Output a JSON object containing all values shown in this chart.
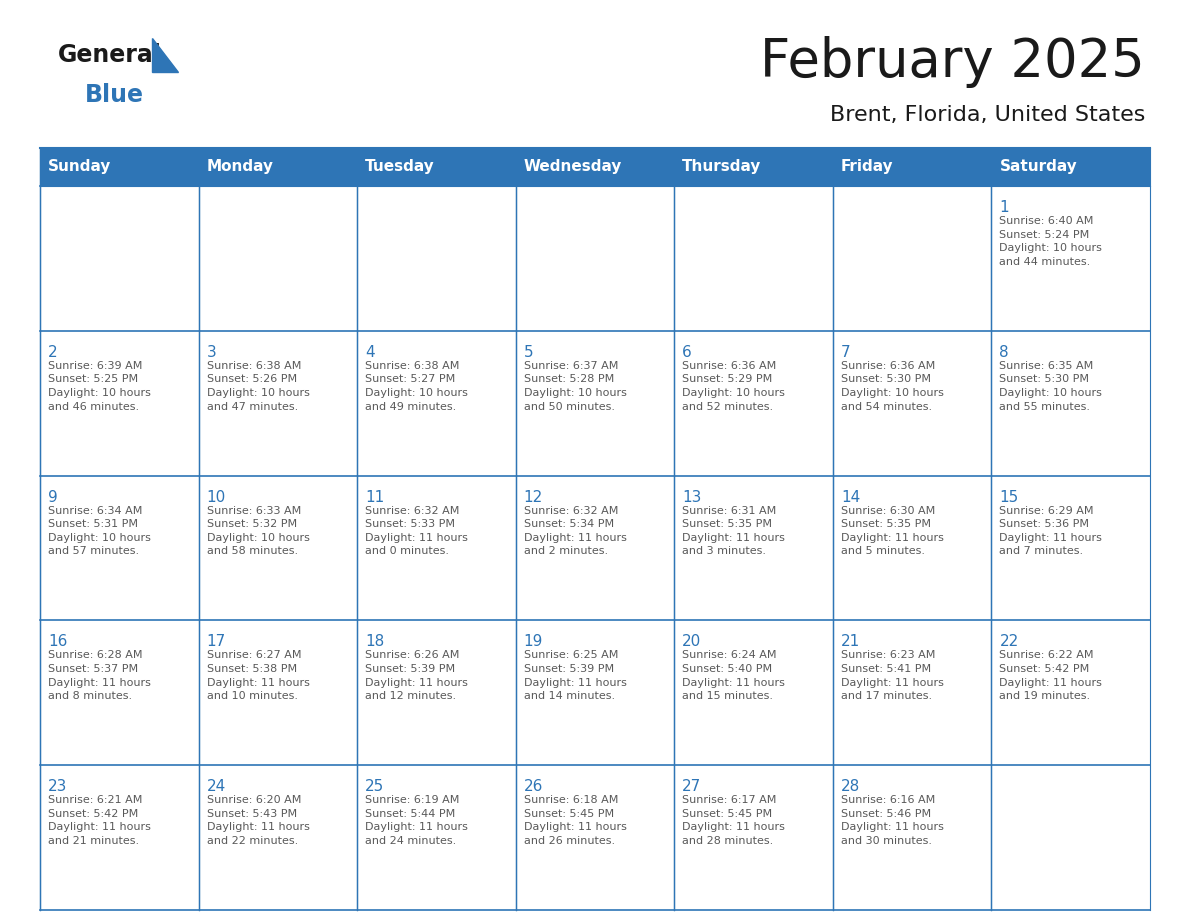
{
  "title": "February 2025",
  "subtitle": "Brent, Florida, United States",
  "header_bg": "#2E75B6",
  "header_text_color": "#FFFFFF",
  "cell_bg": "#FFFFFF",
  "border_color": "#2E75B6",
  "day_number_color": "#2E75B6",
  "detail_text_color": "#595959",
  "background_color": "#FFFFFF",
  "logo_general_color": "#1a1a1a",
  "logo_blue_color": "#2E75B6",
  "logo_triangle_color": "#2E75B6",
  "title_color": "#1a1a1a",
  "subtitle_color": "#1a1a1a",
  "days_of_week": [
    "Sunday",
    "Monday",
    "Tuesday",
    "Wednesday",
    "Thursday",
    "Friday",
    "Saturday"
  ],
  "weeks": [
    [
      {
        "day": "",
        "info": ""
      },
      {
        "day": "",
        "info": ""
      },
      {
        "day": "",
        "info": ""
      },
      {
        "day": "",
        "info": ""
      },
      {
        "day": "",
        "info": ""
      },
      {
        "day": "",
        "info": ""
      },
      {
        "day": "1",
        "info": "Sunrise: 6:40 AM\nSunset: 5:24 PM\nDaylight: 10 hours\nand 44 minutes."
      }
    ],
    [
      {
        "day": "2",
        "info": "Sunrise: 6:39 AM\nSunset: 5:25 PM\nDaylight: 10 hours\nand 46 minutes."
      },
      {
        "day": "3",
        "info": "Sunrise: 6:38 AM\nSunset: 5:26 PM\nDaylight: 10 hours\nand 47 minutes."
      },
      {
        "day": "4",
        "info": "Sunrise: 6:38 AM\nSunset: 5:27 PM\nDaylight: 10 hours\nand 49 minutes."
      },
      {
        "day": "5",
        "info": "Sunrise: 6:37 AM\nSunset: 5:28 PM\nDaylight: 10 hours\nand 50 minutes."
      },
      {
        "day": "6",
        "info": "Sunrise: 6:36 AM\nSunset: 5:29 PM\nDaylight: 10 hours\nand 52 minutes."
      },
      {
        "day": "7",
        "info": "Sunrise: 6:36 AM\nSunset: 5:30 PM\nDaylight: 10 hours\nand 54 minutes."
      },
      {
        "day": "8",
        "info": "Sunrise: 6:35 AM\nSunset: 5:30 PM\nDaylight: 10 hours\nand 55 minutes."
      }
    ],
    [
      {
        "day": "9",
        "info": "Sunrise: 6:34 AM\nSunset: 5:31 PM\nDaylight: 10 hours\nand 57 minutes."
      },
      {
        "day": "10",
        "info": "Sunrise: 6:33 AM\nSunset: 5:32 PM\nDaylight: 10 hours\nand 58 minutes."
      },
      {
        "day": "11",
        "info": "Sunrise: 6:32 AM\nSunset: 5:33 PM\nDaylight: 11 hours\nand 0 minutes."
      },
      {
        "day": "12",
        "info": "Sunrise: 6:32 AM\nSunset: 5:34 PM\nDaylight: 11 hours\nand 2 minutes."
      },
      {
        "day": "13",
        "info": "Sunrise: 6:31 AM\nSunset: 5:35 PM\nDaylight: 11 hours\nand 3 minutes."
      },
      {
        "day": "14",
        "info": "Sunrise: 6:30 AM\nSunset: 5:35 PM\nDaylight: 11 hours\nand 5 minutes."
      },
      {
        "day": "15",
        "info": "Sunrise: 6:29 AM\nSunset: 5:36 PM\nDaylight: 11 hours\nand 7 minutes."
      }
    ],
    [
      {
        "day": "16",
        "info": "Sunrise: 6:28 AM\nSunset: 5:37 PM\nDaylight: 11 hours\nand 8 minutes."
      },
      {
        "day": "17",
        "info": "Sunrise: 6:27 AM\nSunset: 5:38 PM\nDaylight: 11 hours\nand 10 minutes."
      },
      {
        "day": "18",
        "info": "Sunrise: 6:26 AM\nSunset: 5:39 PM\nDaylight: 11 hours\nand 12 minutes."
      },
      {
        "day": "19",
        "info": "Sunrise: 6:25 AM\nSunset: 5:39 PM\nDaylight: 11 hours\nand 14 minutes."
      },
      {
        "day": "20",
        "info": "Sunrise: 6:24 AM\nSunset: 5:40 PM\nDaylight: 11 hours\nand 15 minutes."
      },
      {
        "day": "21",
        "info": "Sunrise: 6:23 AM\nSunset: 5:41 PM\nDaylight: 11 hours\nand 17 minutes."
      },
      {
        "day": "22",
        "info": "Sunrise: 6:22 AM\nSunset: 5:42 PM\nDaylight: 11 hours\nand 19 minutes."
      }
    ],
    [
      {
        "day": "23",
        "info": "Sunrise: 6:21 AM\nSunset: 5:42 PM\nDaylight: 11 hours\nand 21 minutes."
      },
      {
        "day": "24",
        "info": "Sunrise: 6:20 AM\nSunset: 5:43 PM\nDaylight: 11 hours\nand 22 minutes."
      },
      {
        "day": "25",
        "info": "Sunrise: 6:19 AM\nSunset: 5:44 PM\nDaylight: 11 hours\nand 24 minutes."
      },
      {
        "day": "26",
        "info": "Sunrise: 6:18 AM\nSunset: 5:45 PM\nDaylight: 11 hours\nand 26 minutes."
      },
      {
        "day": "27",
        "info": "Sunrise: 6:17 AM\nSunset: 5:45 PM\nDaylight: 11 hours\nand 28 minutes."
      },
      {
        "day": "28",
        "info": "Sunrise: 6:16 AM\nSunset: 5:46 PM\nDaylight: 11 hours\nand 30 minutes."
      },
      {
        "day": "",
        "info": ""
      }
    ]
  ]
}
